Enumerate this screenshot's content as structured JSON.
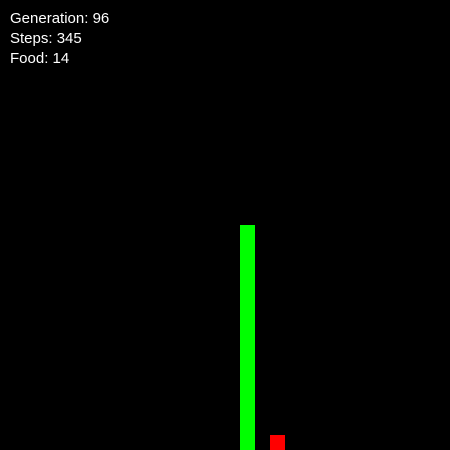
{
  "hud": {
    "generation_label": "Generation:",
    "generation": "96",
    "steps_label": "Steps:",
    "steps": "345",
    "food_label": "Food:",
    "food": "14"
  },
  "colors": {
    "background": "#000000",
    "snake": "#00ff00",
    "food": "#ff0000",
    "hud_text": "#ffffff"
  }
}
